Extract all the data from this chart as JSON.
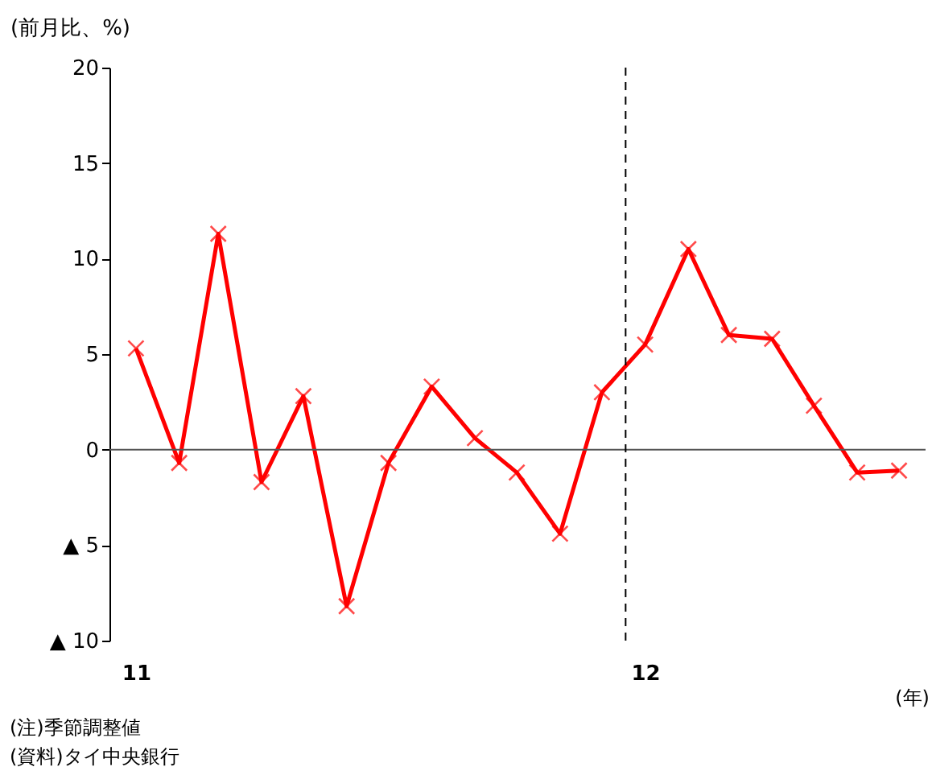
{
  "chart_data": {
    "type": "line",
    "x": [
      "2011-01",
      "2011-02",
      "2011-03",
      "2011-04",
      "2011-05",
      "2011-06",
      "2011-07",
      "2011-08",
      "2011-09",
      "2011-10",
      "2011-11",
      "2011-12",
      "2012-01",
      "2012-02",
      "2012-03",
      "2012-04",
      "2012-05",
      "2012-06",
      "2012-07"
    ],
    "values": [
      5.3,
      -0.7,
      11.3,
      -1.7,
      2.8,
      -8.2,
      -0.7,
      3.3,
      0.6,
      -1.2,
      -4.4,
      3.0,
      5.5,
      10.5,
      6.0,
      5.8,
      2.3,
      -1.2,
      -1.1
    ],
    "color": "#ff0000",
    "marker": "cross",
    "line_style": "solid",
    "xlim": [
      "2010-12-13",
      "2012-07-20"
    ],
    "xticks": [
      {
        "value": "2011-01",
        "label": "11"
      },
      {
        "value": "2012-01",
        "label": "12"
      }
    ],
    "ylim": [
      -10,
      20
    ],
    "yticks": [
      {
        "value": -10,
        "label": "▲ 10"
      },
      {
        "value": -5,
        "label": "▲ 5"
      },
      0,
      5,
      10,
      15,
      20
    ],
    "ylabel": "(前月比、%)",
    "xlabel": "(年)",
    "ref_lines": [
      {
        "axis": "y",
        "value": 0,
        "color": "#555555",
        "line_style": "solid"
      },
      {
        "axis": "x",
        "value": "2011-12-18",
        "color": "#000000",
        "line_style": "dashed"
      }
    ],
    "annotations": [
      "(注)季節調整値",
      "(資料)タイ中央銀行"
    ]
  }
}
